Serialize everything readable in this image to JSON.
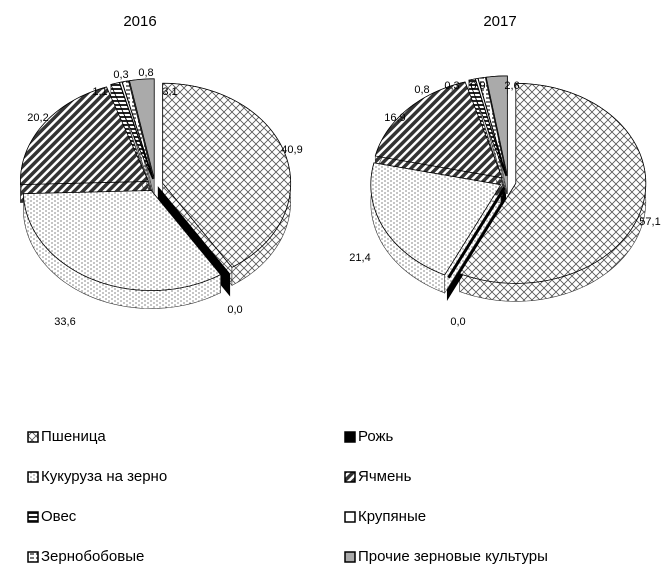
{
  "legend": {
    "categories": [
      "Пшеница",
      "Рожь",
      "Кукуруза на зерно",
      "Ячмень",
      "Овес",
      "Крупяные",
      "Зернобобовые",
      "Прочие зерновые культуры"
    ],
    "fills": [
      "crosshatch",
      "black",
      "dots",
      "stripes",
      "hstripes",
      "white",
      "dashes",
      "gray"
    ]
  },
  "chart_data": [
    {
      "type": "pie",
      "title": "2016",
      "values": [
        40.9,
        0.0,
        33.6,
        20.2,
        1.1,
        0.3,
        0.8,
        3.1
      ],
      "value_labels": [
        "40,9",
        "0,0",
        "33,6",
        "20,2",
        "1,1",
        "0,3",
        "0,8",
        "3,1"
      ]
    },
    {
      "type": "pie",
      "title": "2017",
      "values": [
        57.1,
        0.0,
        21.4,
        16.9,
        0.8,
        0.3,
        0.9,
        2.6
      ],
      "value_labels": [
        "57,1",
        "0,0",
        "21,4",
        "16,9",
        "0,8",
        "0,3",
        "0,9",
        "2,6"
      ]
    }
  ]
}
